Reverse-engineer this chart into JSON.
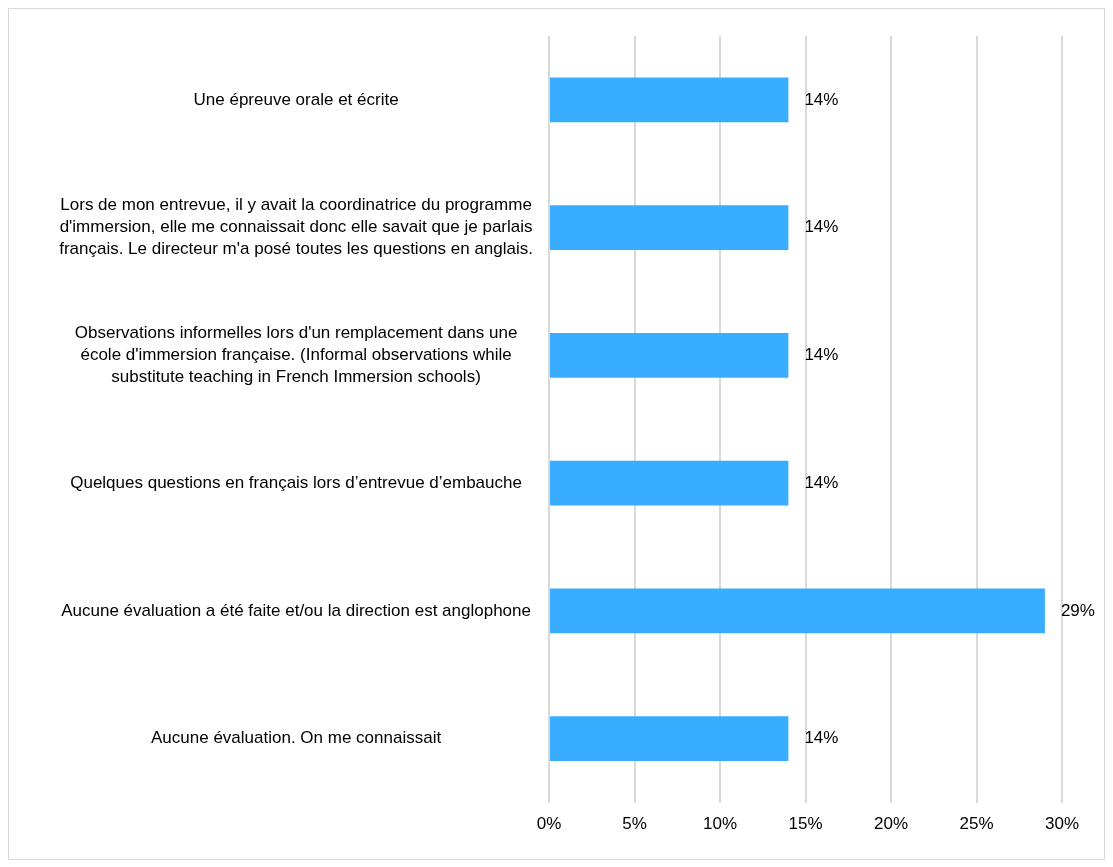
{
  "chart_data": {
    "type": "bar",
    "orientation": "horizontal",
    "categories": [
      "Une épreuve orale et écrite",
      "Lors de mon entrevue, il y avait la coordinatrice du programme d'immersion, elle me connaissait donc elle savait que je parlais français. Le directeur m'a posé toutes les questions en anglais.",
      "Observations informelles lors d'un remplacement dans une école d'immersion française. (Informal observations while substitute teaching in French Immersion schools)",
      "Quelques questions en français lors d’entrevue d’embauche",
      "Aucune évaluation a été faite et/ou la direction est anglophone",
      "Aucune évaluation. On me connaissait"
    ],
    "values": [
      14,
      14,
      14,
      14,
      29,
      14
    ],
    "value_labels": [
      "14%",
      "14%",
      "14%",
      "14%",
      "29%",
      "14%"
    ],
    "color": "#38acff",
    "xlim": [
      0,
      30
    ],
    "xticks": [
      {
        "value": 0,
        "label": "0%"
      },
      {
        "value": 5,
        "label": "5%"
      },
      {
        "value": 10,
        "label": "10%"
      },
      {
        "value": 15,
        "label": "15%"
      },
      {
        "value": 20,
        "label": "20%"
      },
      {
        "value": 25,
        "label": "25%"
      },
      {
        "value": 30,
        "label": "30%"
      }
    ],
    "grid": "x"
  }
}
